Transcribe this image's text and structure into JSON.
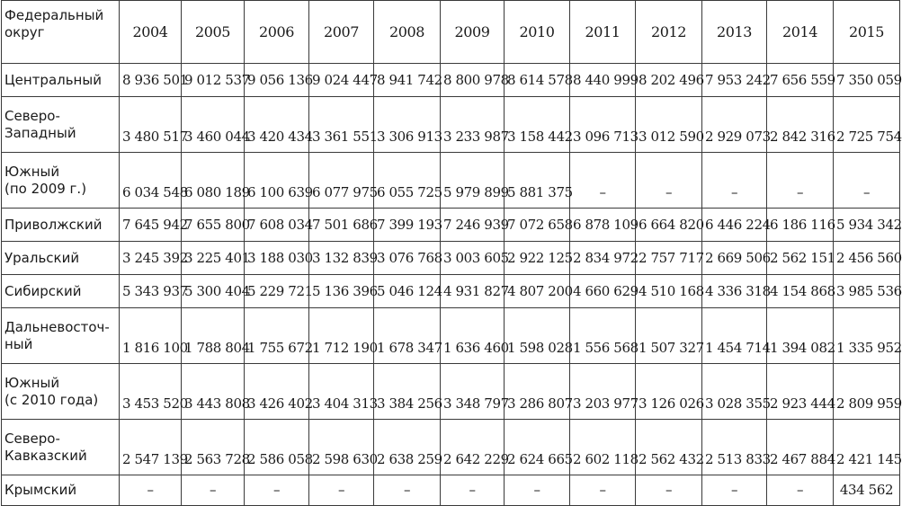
{
  "header": {
    "district_label": "Федеральный\nокруг",
    "years": [
      "2004",
      "2005",
      "2006",
      "2007",
      "2008",
      "2009",
      "2010",
      "2011",
      "2012",
      "2013",
      "2014",
      "2015"
    ]
  },
  "rows": [
    {
      "name": "Центральный",
      "lines": 1,
      "values": [
        "8 936 501",
        "9 012 537",
        "9 056 136",
        "9 024 447",
        "8 941 742",
        "8 800 978",
        "8 614 578",
        "8 440 999",
        "8 202 496",
        "7 953 242",
        "7 656 559",
        "7 350 059"
      ]
    },
    {
      "name": "Северо-\nЗападный",
      "lines": 2,
      "values": [
        "3 480 517",
        "3 460 044",
        "3 420 434",
        "3 361 551",
        "3 306 913",
        "3 233 987",
        "3 158 442",
        "3 096 713",
        "3 012 590",
        "2 929 073",
        "2 842 316",
        "2 725 754"
      ]
    },
    {
      "name": "Южный\n(по 2009 г.)",
      "lines": 2,
      "values": [
        "6 034 548",
        "6 080 189",
        "6 100 639",
        "6 077 975",
        "6 055 725",
        "5 979 899",
        "5 881 375",
        "–",
        "–",
        "–",
        "–",
        "–"
      ]
    },
    {
      "name": "Приволжский",
      "lines": 1,
      "values": [
        "7 645 942",
        "7 655 800",
        "7 608 034",
        "7 501 686",
        "7 399 193",
        "7 246 939",
        "7 072 658",
        "6 878 109",
        "6 664 820",
        "6 446 224",
        "6 186 116",
        "5 934 342"
      ]
    },
    {
      "name": "Уральский",
      "lines": 1,
      "values": [
        "3 245 392",
        "3 225 401",
        "3 188 030",
        "3 132 839",
        "3 076 768",
        "3 003 605",
        "2 922 125",
        "2 834 972",
        "2 757 717",
        "2 669 506",
        "2 562 151",
        "2 456 560"
      ]
    },
    {
      "name": "Сибирский",
      "lines": 1,
      "values": [
        "5 343 937",
        "5 300 404",
        "5 229 721",
        "5 136 396",
        "5 046 124",
        "4 931 827",
        "4 807 200",
        "4 660 629",
        "4 510 168",
        "4 336 318",
        "4 154 868",
        "3 985 536"
      ]
    },
    {
      "name": "Дальневосточ-\nный",
      "lines": 2,
      "values": [
        "1 816 100",
        "1 788 804",
        "1 755 672",
        "1 712 190",
        "1 678 347",
        "1 636 460",
        "1 598 028",
        "1 556 568",
        "1 507 327",
        "1 454 714",
        "1 394 082",
        "1 335 952"
      ]
    },
    {
      "name": "Южный\n(с 2010 года)",
      "lines": 2,
      "values": [
        "3 453 520",
        "3 443 808",
        "3 426 402",
        "3 404 313",
        "3 384 256",
        "3 348 797",
        "3 286 807",
        "3 203 977",
        "3 126 026",
        "3 028 355",
        "2 923 444",
        "2 809 959"
      ]
    },
    {
      "name": "Северо-\nКавказский",
      "lines": 2,
      "values": [
        "2 547 139",
        "2 563 728",
        "2 586 058",
        "2 598 630",
        "2 638 259",
        "2 642 229",
        "2 624 665",
        "2 602 118",
        "2 562 432",
        "2 513 833",
        "2 467 884",
        "2 421 145"
      ]
    },
    {
      "name": "Крымский",
      "lines": 1,
      "values": [
        "–",
        "–",
        "–",
        "–",
        "–",
        "–",
        "–",
        "–",
        "–",
        "–",
        "–",
        "434 562"
      ]
    }
  ]
}
